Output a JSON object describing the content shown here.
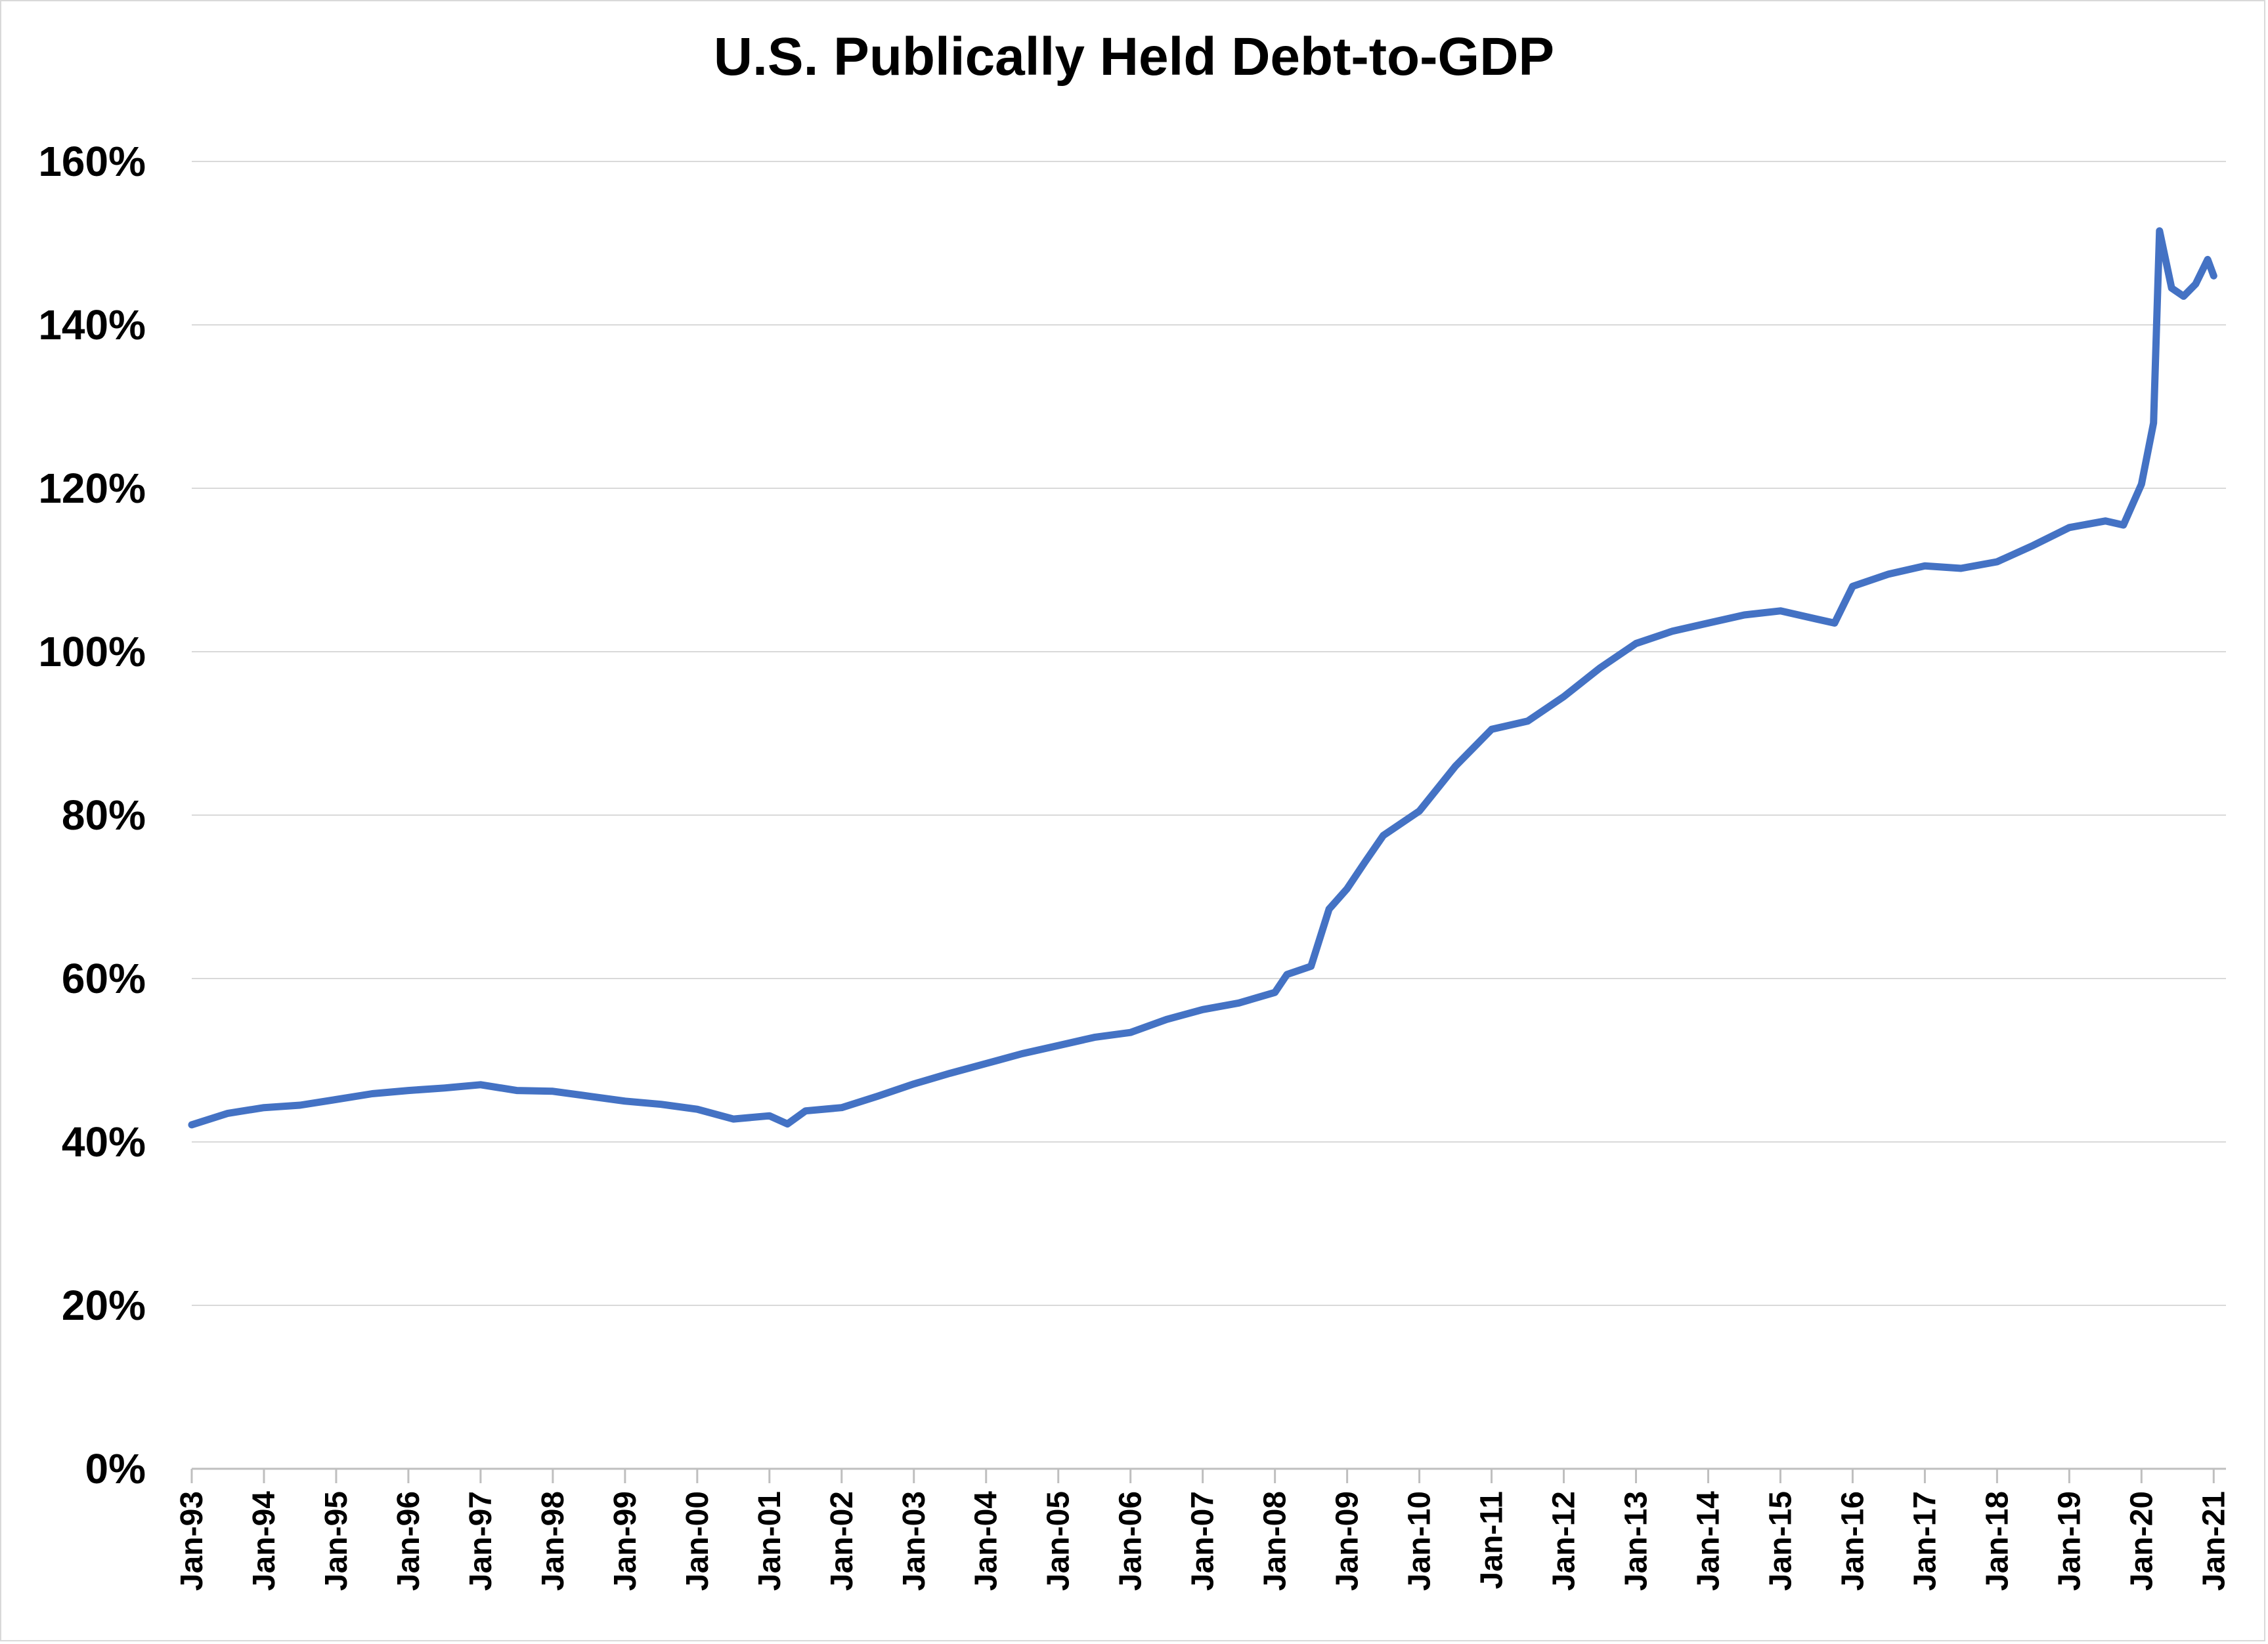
{
  "chart_data": {
    "type": "line",
    "title": "U.S. Publically Held Debt-to-GDP",
    "xlabel": "",
    "ylabel": "",
    "ylim": [
      0,
      160
    ],
    "y_unit": "%",
    "y_ticks": [
      "0%",
      "20%",
      "40%",
      "60%",
      "80%",
      "100%",
      "120%",
      "140%",
      "160%"
    ],
    "x_tick_labels": [
      "Jan-93",
      "Jan-94",
      "Jan-95",
      "Jan-96",
      "Jan-97",
      "Jan-98",
      "Jan-99",
      "Jan-00",
      "Jan-01",
      "Jan-02",
      "Jan-03",
      "Jan-04",
      "Jan-05",
      "Jan-06",
      "Jan-07",
      "Jan-08",
      "Jan-09",
      "Jan-10",
      "Jan-11",
      "Jan-12",
      "Jan-13",
      "Jan-14",
      "Jan-15",
      "Jan-16",
      "Jan-17",
      "Jan-18",
      "Jan-19",
      "Jan-20",
      "Jan-21"
    ],
    "grid": "horizontal",
    "legend": "none",
    "line_color": "#4472C4",
    "series": [
      {
        "x": [
          "1993-01",
          "1993-07",
          "1994-01",
          "1994-07",
          "1995-01",
          "1995-07",
          "1996-01",
          "1996-07",
          "1997-01",
          "1997-07",
          "1998-01",
          "1998-07",
          "1999-01",
          "1999-07",
          "2000-01",
          "2000-07",
          "2001-01",
          "2001-04",
          "2001-07",
          "2002-01",
          "2002-07",
          "2003-01",
          "2003-07",
          "2004-01",
          "2004-07",
          "2005-01",
          "2005-07",
          "2006-01",
          "2006-07",
          "2007-01",
          "2007-07",
          "2008-01",
          "2008-03",
          "2008-07",
          "2008-10",
          "2009-01",
          "2009-04",
          "2009-07",
          "2010-01",
          "2010-07",
          "2011-01",
          "2011-07",
          "2012-01",
          "2012-07",
          "2013-01",
          "2013-07",
          "2014-01",
          "2014-07",
          "2015-01",
          "2015-07",
          "2015-10",
          "2016-01",
          "2016-07",
          "2017-01",
          "2017-07",
          "2018-01",
          "2018-07",
          "2019-01",
          "2019-07",
          "2019-10",
          "2020-01",
          "2020-03",
          "2020-04",
          "2020-06",
          "2020-08",
          "2020-10",
          "2020-12",
          "2021-01"
        ],
        "values": [
          42.1,
          43.5,
          44.2,
          44.5,
          45.2,
          45.9,
          46.3,
          46.6,
          47.0,
          46.3,
          46.2,
          45.6,
          45.0,
          44.6,
          44.0,
          42.8,
          43.2,
          42.2,
          43.8,
          44.2,
          45.6,
          47.1,
          48.4,
          49.6,
          50.8,
          51.8,
          52.8,
          53.4,
          55.0,
          56.2,
          57.0,
          58.3,
          60.5,
          61.5,
          68.5,
          71.0,
          74.3,
          77.5,
          80.5,
          86.0,
          90.5,
          91.5,
          94.5,
          98.0,
          101.0,
          102.5,
          103.5,
          104.5,
          105.0,
          104.0,
          103.5,
          108.0,
          109.5,
          110.5,
          110.2,
          111.0,
          113.0,
          115.2,
          116.0,
          115.5,
          120.5,
          128.0,
          151.5,
          144.5,
          143.5,
          145.0,
          148.0,
          146.0
        ]
      }
    ]
  }
}
